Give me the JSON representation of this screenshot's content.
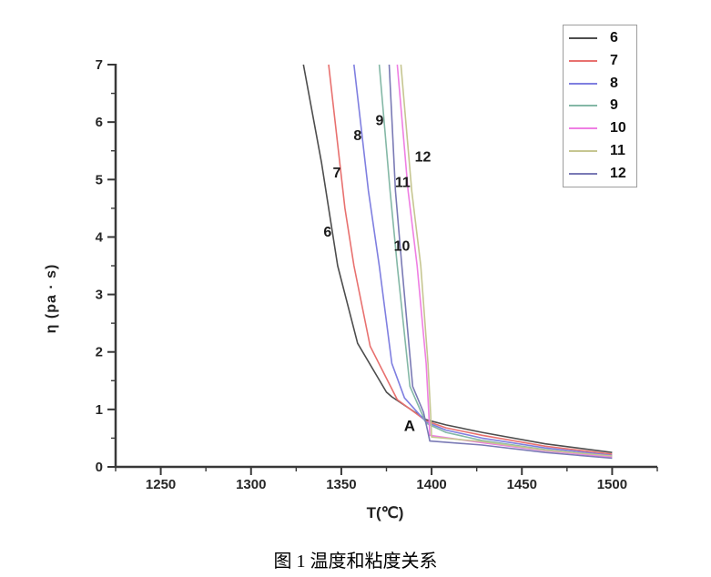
{
  "figure_caption": "图 1 温度和粘度关系",
  "chart_data": {
    "type": "line",
    "title": "",
    "xlabel": "T(℃)",
    "ylabel": "η (pa · s)",
    "xlim": [
      1225,
      1525
    ],
    "ylim": [
      0,
      7
    ],
    "x_major_ticks": [
      1250,
      1300,
      1350,
      1400,
      1450,
      1500
    ],
    "x_minor_tick_step": 25,
    "y_major_ticks": [
      0,
      1,
      2,
      3,
      4,
      5,
      6,
      7
    ],
    "y_minor_tick_step": 0.5,
    "grid": false,
    "axis_color": "#383838",
    "legend_position": "top-right",
    "series": [
      {
        "name": "6",
        "color": "#4d4d4d",
        "points": [
          [
            1329,
            7
          ],
          [
            1339,
            5.3
          ],
          [
            1348,
            3.5
          ],
          [
            1359,
            2.15
          ],
          [
            1375,
            1.3
          ],
          [
            1378,
            1.22
          ],
          [
            1397,
            0.82
          ],
          [
            1408,
            0.73
          ],
          [
            1428,
            0.6
          ],
          [
            1463,
            0.4
          ],
          [
            1500,
            0.25
          ]
        ]
      },
      {
        "name": "7",
        "color": "#e8716f",
        "points": [
          [
            1343,
            7
          ],
          [
            1352,
            4.5
          ],
          [
            1357,
            3.5
          ],
          [
            1366,
            2.1
          ],
          [
            1381,
            1.17
          ],
          [
            1397,
            0.8
          ],
          [
            1408,
            0.68
          ],
          [
            1428,
            0.55
          ],
          [
            1463,
            0.36
          ],
          [
            1500,
            0.22
          ]
        ]
      },
      {
        "name": "8",
        "color": "#7f7fe0",
        "points": [
          [
            1357,
            7
          ],
          [
            1365,
            4.8
          ],
          [
            1371,
            3.5
          ],
          [
            1378,
            1.8
          ],
          [
            1385,
            1.2
          ],
          [
            1397,
            0.78
          ],
          [
            1408,
            0.64
          ],
          [
            1428,
            0.5
          ],
          [
            1463,
            0.33
          ],
          [
            1500,
            0.2
          ]
        ]
      },
      {
        "name": "9",
        "color": "#84b8a6",
        "points": [
          [
            1371,
            7
          ],
          [
            1377,
            4.8
          ],
          [
            1381,
            3.5
          ],
          [
            1388,
            1.4
          ],
          [
            1394,
            0.97
          ],
          [
            1397,
            0.76
          ],
          [
            1408,
            0.6
          ],
          [
            1428,
            0.46
          ],
          [
            1463,
            0.3
          ],
          [
            1500,
            0.18
          ]
        ]
      },
      {
        "name": "10",
        "color": "#ef7fe3",
        "points": [
          [
            1381,
            7
          ],
          [
            1387,
            4.8
          ],
          [
            1392,
            3.5
          ],
          [
            1397,
            1.8
          ],
          [
            1398.5,
            0.9
          ],
          [
            1399,
            0.55
          ],
          [
            1428,
            0.42
          ],
          [
            1463,
            0.28
          ],
          [
            1500,
            0.17
          ]
        ]
      },
      {
        "name": "11",
        "color": "#c6c691",
        "points": [
          [
            1383,
            7
          ],
          [
            1389,
            4.8
          ],
          [
            1394,
            3.5
          ],
          [
            1398,
            1.8
          ],
          [
            1399.5,
            0.9
          ],
          [
            1400,
            0.52
          ],
          [
            1428,
            0.44
          ],
          [
            1463,
            0.29
          ],
          [
            1500,
            0.19
          ]
        ]
      },
      {
        "name": "12",
        "color": "#7a7ab5",
        "points": [
          [
            1376.5,
            7
          ],
          [
            1380,
            4.8
          ],
          [
            1383.5,
            3.5
          ],
          [
            1389.5,
            1.4
          ],
          [
            1395.5,
            0.95
          ],
          [
            1398,
            0.6
          ],
          [
            1399,
            0.45
          ],
          [
            1428,
            0.38
          ],
          [
            1463,
            0.25
          ],
          [
            1500,
            0.15
          ]
        ]
      }
    ],
    "annotations": [
      {
        "text": "6",
        "T": 1342.4,
        "eta": 4.09
      },
      {
        "text": "7",
        "T": 1347.5,
        "eta": 5.12
      },
      {
        "text": "8",
        "T": 1359,
        "eta": 5.77
      },
      {
        "text": "9",
        "T": 1371.2,
        "eta": 6.03
      },
      {
        "text": "10",
        "T": 1383.6,
        "eta": 3.85
      },
      {
        "text": "11",
        "T": 1384,
        "eta": 4.96
      },
      {
        "text": "12",
        "T": 1395.2,
        "eta": 5.4
      },
      {
        "text": "A",
        "T": 1387.8,
        "eta": 0.71,
        "big": true
      }
    ],
    "legend_entries": [
      "6",
      "7",
      "8",
      "9",
      "10",
      "11",
      "12"
    ]
  }
}
